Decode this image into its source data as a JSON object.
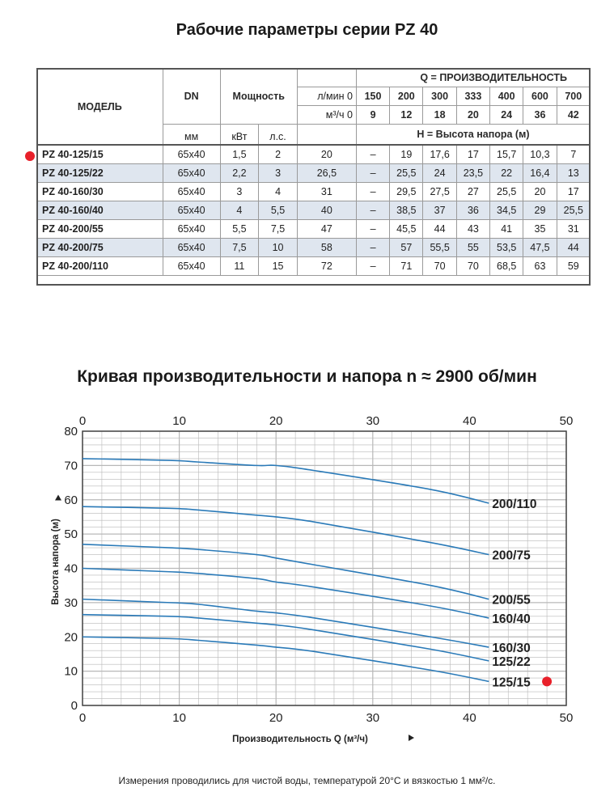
{
  "title_table": "Рабочие параметры серии PZ 40",
  "title_chart": "Кривая производительности и напора n ≈ 2900 об/мин",
  "footnote": "Измерения проводились для чистой воды, температурой 20°С и вязкостью 1 мм²/с.",
  "table": {
    "h_model": "МОДЕЛЬ",
    "h_dn": "DN",
    "h_power": "Мощность",
    "h_q": "Q = ПРОИЗВОДИТЕЛЬНОСТЬ",
    "h_lmin": "л/мин 0",
    "h_m3h": "м³/ч 0",
    "h_head": "H = Высота напора (м)",
    "u_mm": "мм",
    "u_kw": "кВт",
    "u_hp": "л.с.",
    "lmin": [
      "150",
      "200",
      "300",
      "333",
      "400",
      "600",
      "700"
    ],
    "m3h": [
      "9",
      "12",
      "18",
      "20",
      "24",
      "36",
      "42"
    ],
    "rows": [
      [
        "PZ 40-125/15",
        "65x40",
        "1,5",
        "2",
        "20",
        "–",
        "19",
        "17,6",
        "17",
        "15,7",
        "10,3",
        "7"
      ],
      [
        "PZ 40-125/22",
        "65x40",
        "2,2",
        "3",
        "26,5",
        "–",
        "25,5",
        "24",
        "23,5",
        "22",
        "16,4",
        "13"
      ],
      [
        "PZ 40-160/30",
        "65x40",
        "3",
        "4",
        "31",
        "–",
        "29,5",
        "27,5",
        "27",
        "25,5",
        "20",
        "17"
      ],
      [
        "PZ 40-160/40",
        "65x40",
        "4",
        "5,5",
        "40",
        "–",
        "38,5",
        "37",
        "36",
        "34,5",
        "29",
        "25,5"
      ],
      [
        "PZ 40-200/55",
        "65x40",
        "5,5",
        "7,5",
        "47",
        "–",
        "45,5",
        "44",
        "43",
        "41",
        "35",
        "31"
      ],
      [
        "PZ 40-200/75",
        "65x40",
        "7,5",
        "10",
        "58",
        "–",
        "57",
        "55,5",
        "55",
        "53,5",
        "47,5",
        "44"
      ],
      [
        "PZ 40-200/110",
        "65x40",
        "11",
        "15",
        "72",
        "–",
        "71",
        "70",
        "70",
        "68,5",
        "63",
        "59"
      ]
    ]
  },
  "colors": {
    "curve": "#2a7ab8",
    "grid": "#b8b8b8",
    "highlight": "#e8202a",
    "row_shade": "#dfe6ef"
  },
  "chart_data": {
    "type": "line",
    "xlabel": "Производительность Q (м³/ч)",
    "ylabel": "Высота напора (м)",
    "xlim": [
      0,
      50
    ],
    "ylim": [
      0,
      80
    ],
    "xticks": [
      0,
      10,
      20,
      30,
      40,
      50
    ],
    "yticks": [
      0,
      10,
      20,
      30,
      40,
      50,
      60,
      70,
      80
    ],
    "grid": true,
    "secondary_x_axis": "top",
    "x": [
      0,
      9,
      12,
      18,
      20,
      24,
      36,
      42
    ],
    "series": [
      {
        "name": "125/15",
        "values": [
          20,
          19.5,
          19,
          17.6,
          17,
          15.7,
          10.3,
          7
        ]
      },
      {
        "name": "125/22",
        "values": [
          26.5,
          26,
          25.5,
          24,
          23.5,
          22,
          16.4,
          13
        ]
      },
      {
        "name": "160/30",
        "values": [
          31,
          30,
          29.5,
          27.5,
          27,
          25.5,
          20,
          17
        ]
      },
      {
        "name": "160/40",
        "values": [
          40,
          39,
          38.5,
          37,
          36,
          34.5,
          29,
          25.5
        ]
      },
      {
        "name": "200/55",
        "values": [
          47,
          46,
          45.5,
          44,
          43,
          41,
          35,
          31
        ]
      },
      {
        "name": "200/75",
        "values": [
          58,
          57.5,
          57,
          55.5,
          55,
          53.5,
          47.5,
          44
        ]
      },
      {
        "name": "200/110",
        "values": [
          72,
          71.5,
          71,
          70,
          70,
          68.5,
          63,
          59
        ]
      }
    ],
    "highlighted_series": "125/15"
  }
}
